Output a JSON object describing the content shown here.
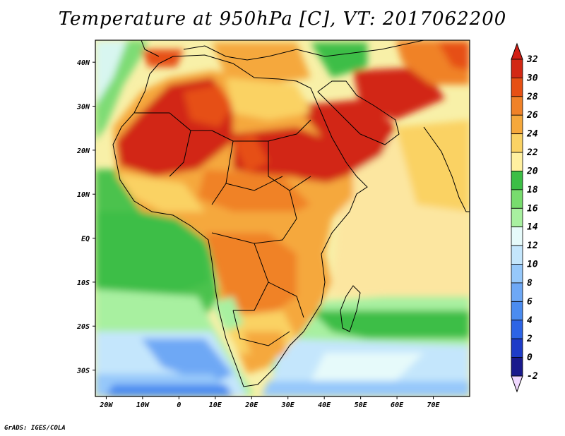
{
  "title": "Temperature at 950hPa [C], VT: 2017062200",
  "credit": "GrADS: IGES/COLA",
  "map": {
    "projection": "lat-lon",
    "lon_range": [
      -23,
      80
    ],
    "lat_range": [
      -36,
      45
    ],
    "x_ticks": [
      "20W",
      "10W",
      "0",
      "10E",
      "20E",
      "30E",
      "40E",
      "50E",
      "60E",
      "70E"
    ],
    "y_ticks": [
      "40N",
      "30N",
      "20N",
      "10N",
      "EQ",
      "10S",
      "20S",
      "30S"
    ]
  },
  "colorbar": {
    "levels": [
      "-2",
      "0",
      "2",
      "4",
      "6",
      "8",
      "10",
      "12",
      "14",
      "16",
      "18",
      "20",
      "22",
      "24",
      "26",
      "28",
      "30",
      "32"
    ],
    "colors": [
      "#f0d8ff",
      "#1a1a8c",
      "#1e3cc8",
      "#2d64e6",
      "#4b8cf0",
      "#6ea8f5",
      "#96c8fa",
      "#c4e6fc",
      "#e6fafa",
      "#a8f0a0",
      "#78dc6e",
      "#3cbe46",
      "#fff0a0",
      "#fad264",
      "#f5a83c",
      "#f08228",
      "#e65014",
      "#d22814",
      "#d21e14"
    ]
  }
}
